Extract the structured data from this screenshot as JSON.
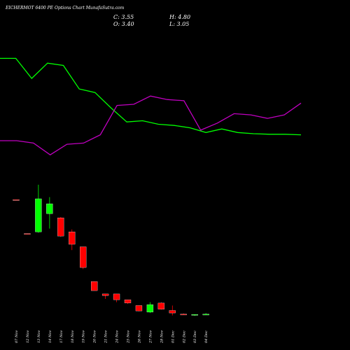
{
  "header": {
    "title": "EICHERMOT 6400 PE Options Chart MunafaSutra.com",
    "close": "C: 3.55",
    "open": "O: 3.40",
    "high": "H: 4.80",
    "low": "L: 3.05"
  },
  "colors": {
    "background": "#000000",
    "up": "#00ff00",
    "down": "#ff0000",
    "line_green": "#00ff00",
    "line_magenta": "#c000c0",
    "text": "#ffffff"
  },
  "chart_data": {
    "type": "candlestick",
    "categories": [
      "07 Nov",
      "12 Nov",
      "13 Nov",
      "14 Nov",
      "17 Nov",
      "18 Nov",
      "19 Nov",
      "20 Nov",
      "21 Nov",
      "24 Nov",
      "25 Nov",
      "26 Nov",
      "27 Nov",
      "28 Nov",
      "01 Dec",
      "02 Dec",
      "03 Dec",
      "04 Dec"
    ],
    "ohlc": [
      {
        "o": 142,
        "h": 142,
        "l": 141,
        "c": 141.5
      },
      {
        "o": 101,
        "h": 101,
        "l": 100,
        "c": 100.5
      },
      {
        "o": 103,
        "h": 160,
        "l": 102,
        "c": 143
      },
      {
        "o": 125,
        "h": 145,
        "l": 107,
        "c": 137
      },
      {
        "o": 120,
        "h": 121,
        "l": 97,
        "c": 98
      },
      {
        "o": 103,
        "h": 106,
        "l": 81,
        "c": 88
      },
      {
        "o": 85,
        "h": 85,
        "l": 58,
        "c": 60
      },
      {
        "o": 43,
        "h": 43,
        "l": 32,
        "c": 32
      },
      {
        "o": 28,
        "h": 28,
        "l": 22,
        "c": 26
      },
      {
        "o": 28,
        "h": 28,
        "l": 18,
        "c": 21
      },
      {
        "o": 21,
        "h": 21,
        "l": 16,
        "c": 17
      },
      {
        "o": 14,
        "h": 14,
        "l": 7,
        "c": 7.5
      },
      {
        "o": 6,
        "h": 18,
        "l": 5,
        "c": 15
      },
      {
        "o": 17,
        "h": 18,
        "l": 9,
        "c": 9.5
      },
      {
        "o": 8,
        "h": 14,
        "l": 2,
        "c": 5
      },
      {
        "o": 3.6,
        "h": 4.4,
        "l": 3,
        "c": 3.4
      },
      {
        "o": 2.3,
        "h": 3.5,
        "l": 1.5,
        "c": 3.2
      },
      {
        "o": 3.4,
        "h": 4.8,
        "l": 3.05,
        "c": 3.55
      }
    ],
    "indicators": [
      {
        "color": "#00ff00",
        "values": [
          92,
          92,
          75,
          88,
          86,
          66,
          63,
          50,
          38,
          39,
          36,
          35,
          33,
          29,
          32,
          29,
          28,
          27.5,
          27.5,
          27
        ]
      },
      {
        "color": "#c000c0",
        "values": [
          22,
          22,
          20,
          10,
          19,
          20,
          27,
          52,
          53,
          60,
          57,
          56,
          31,
          37,
          45,
          44,
          41,
          44,
          54
        ]
      }
    ]
  }
}
